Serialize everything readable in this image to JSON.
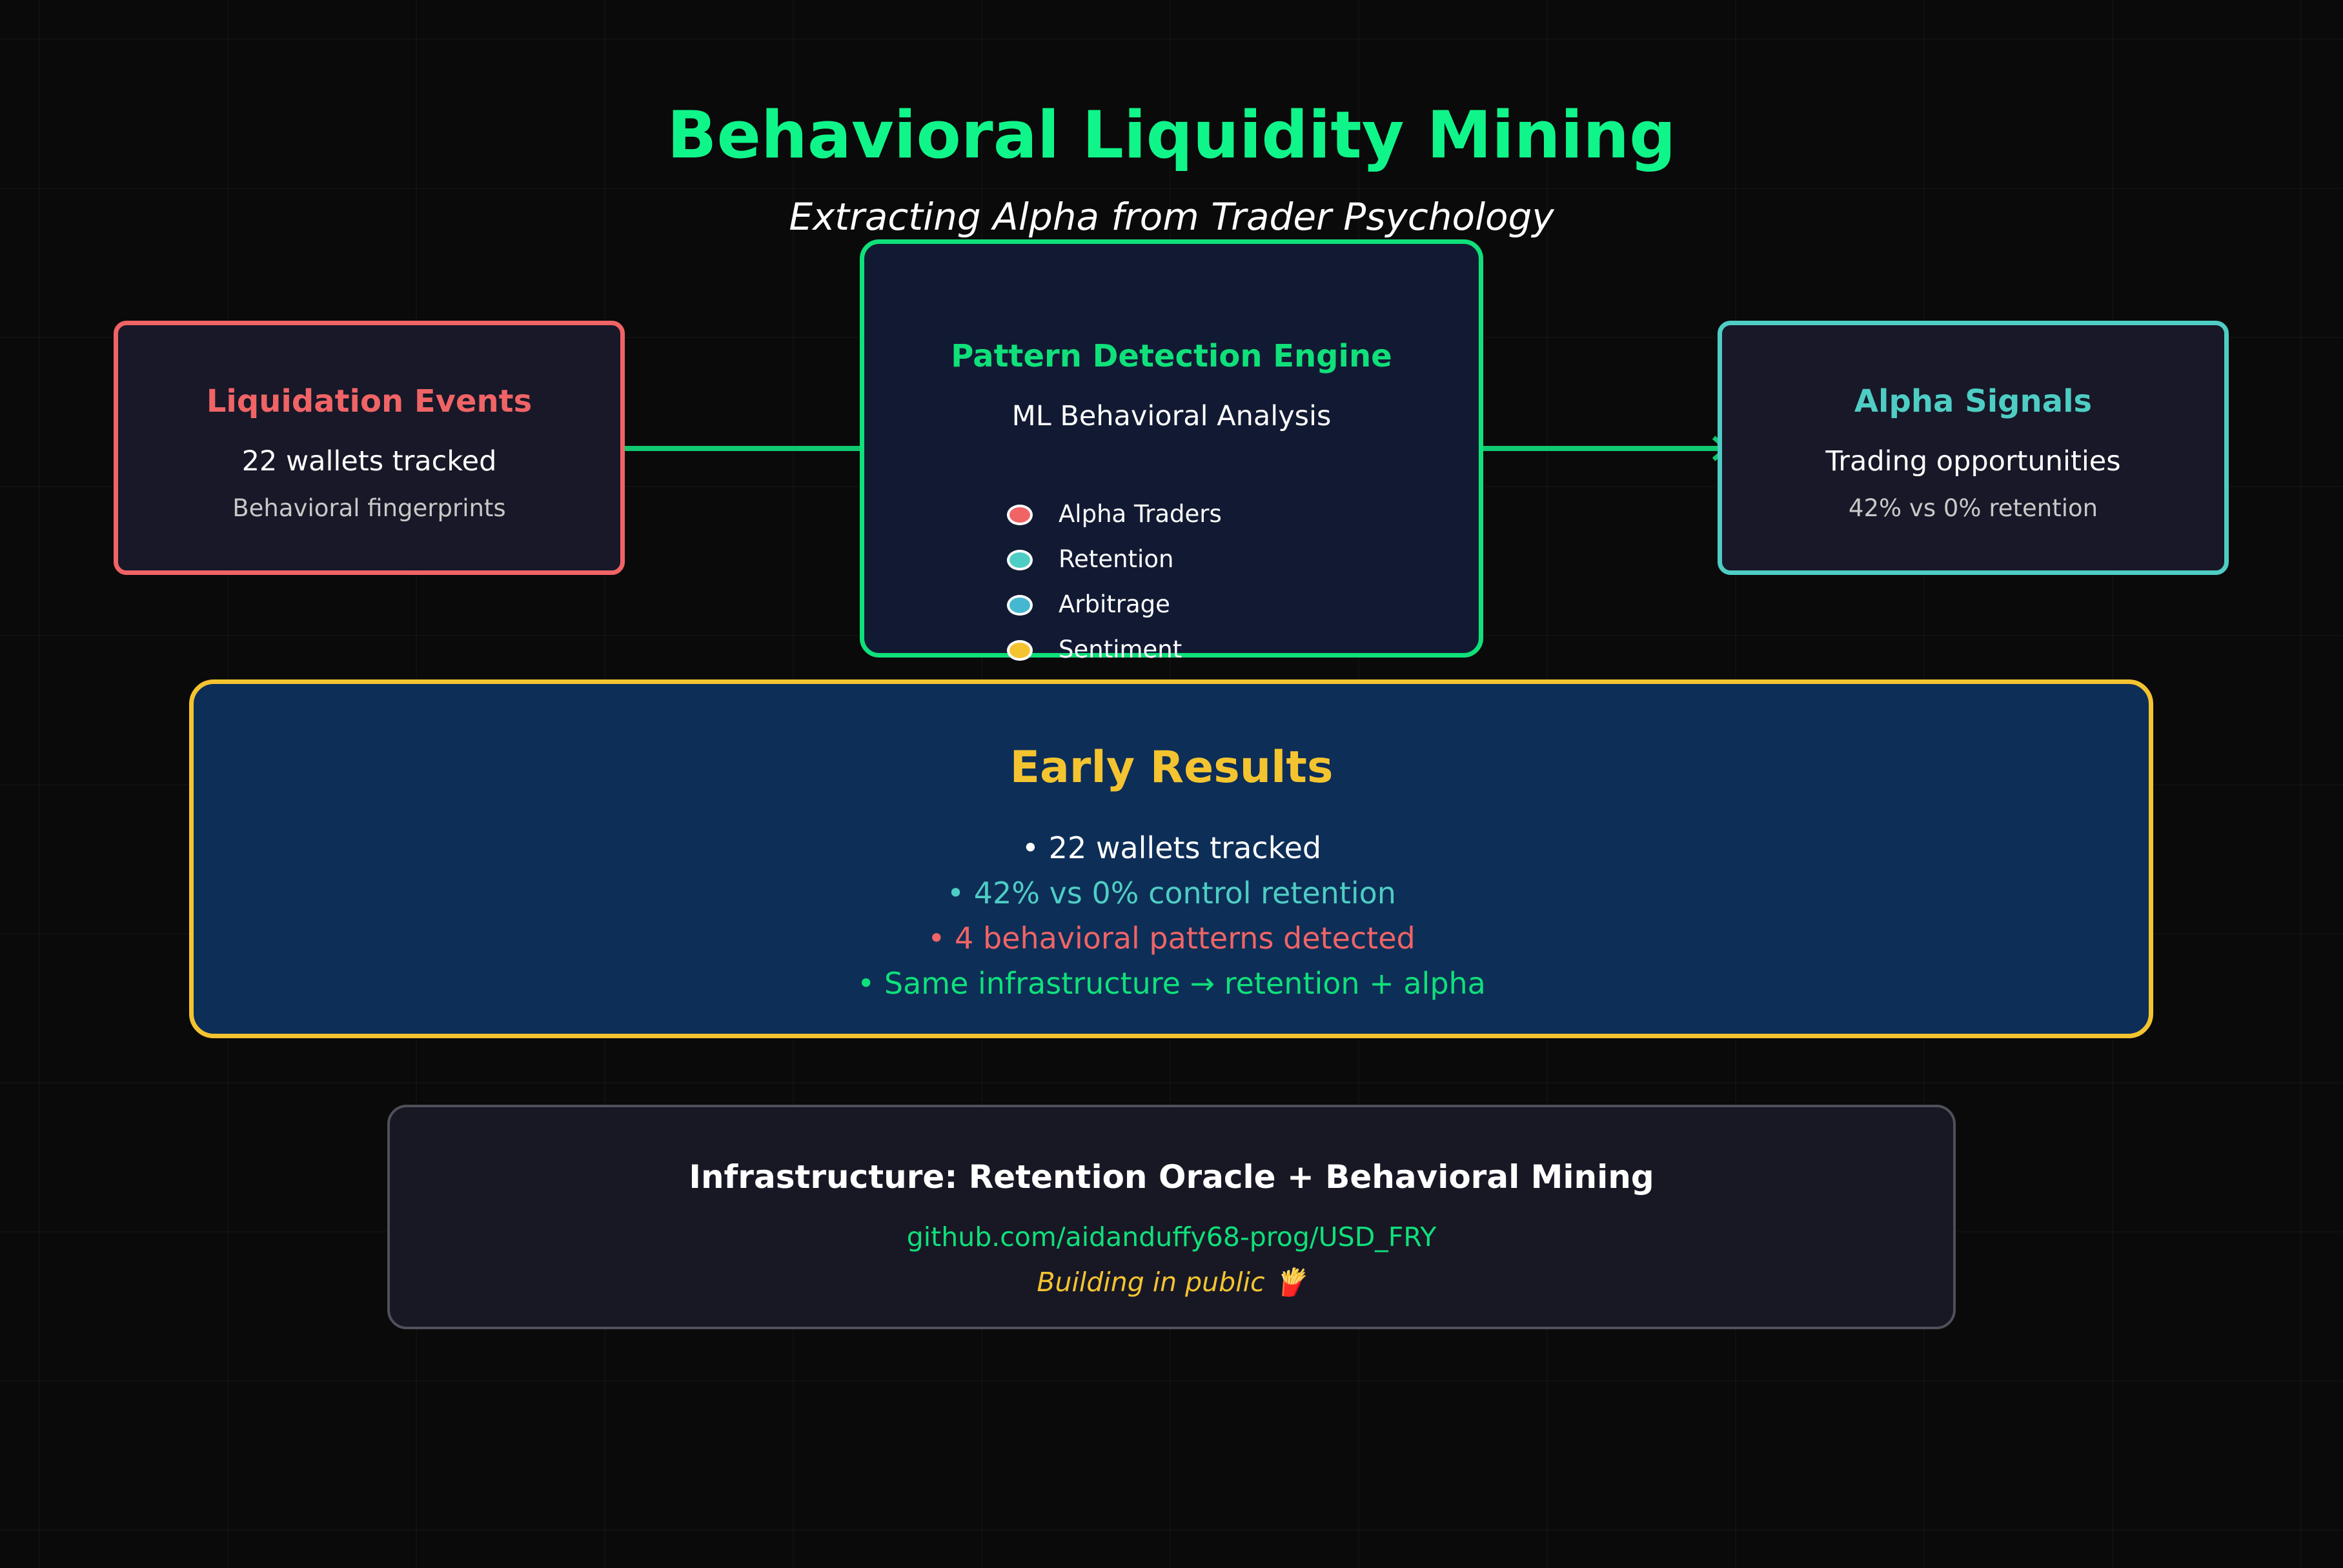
{
  "header": {
    "title": "Behavioral Liquidity Mining",
    "subtitle": "Extracting Alpha from Trader Psychology"
  },
  "input_box": {
    "title": "Liquidation Events",
    "line1": "22 wallets tracked",
    "line2": "Behavioral fingerprints"
  },
  "engine_box": {
    "title": "Pattern Detection Engine",
    "subtitle": "ML Behavioral Analysis",
    "legend": [
      {
        "label": "Alpha Traders",
        "color": "#f06466"
      },
      {
        "label": "Retention",
        "color": "#4ecdc4"
      },
      {
        "label": "Arbitrage",
        "color": "#45b7d1"
      },
      {
        "label": "Sentiment",
        "color": "#f4c430"
      }
    ]
  },
  "output_box": {
    "title": "Alpha Signals",
    "line1": "Trading opportunities",
    "line2": "42% vs 0% retention"
  },
  "results": {
    "title": "Early Results",
    "items": [
      "• 22 wallets tracked",
      "• 42% vs 0% control retention",
      "• 4 behavioral patterns detected",
      "• Same infrastructure → retention + alpha"
    ]
  },
  "infrastructure": {
    "title": "Infrastructure: Retention Oracle + Behavioral Mining",
    "repo": "github.com/aidanduffy68-prog/USD_FRY",
    "tagline": "Building in public 🍟"
  },
  "colors": {
    "accent_green": "#10f58a",
    "red": "#f06466",
    "teal": "#4ecdc4",
    "blue": "#45b7d1",
    "yellow": "#f4c430"
  }
}
